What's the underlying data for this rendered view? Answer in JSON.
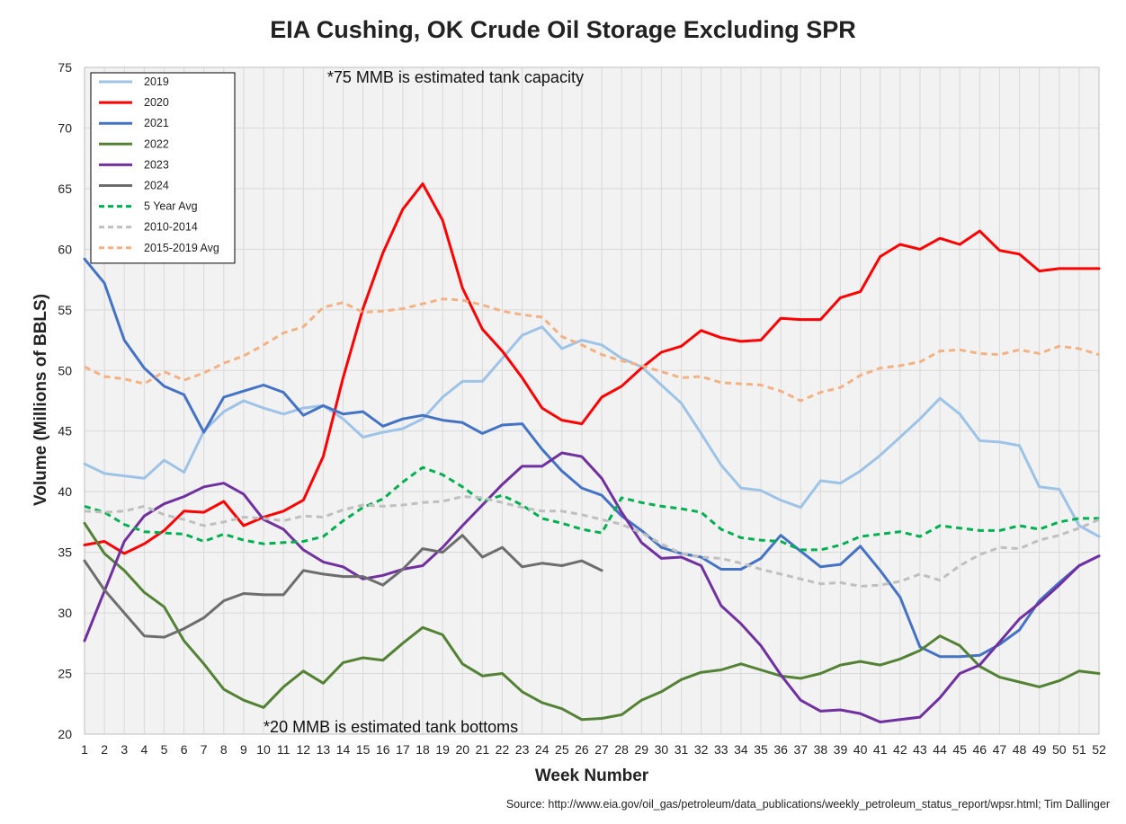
{
  "chart_data": {
    "type": "line",
    "title": "EIA Cushing, OK Crude Oil Storage Excluding SPR",
    "xlabel": "Week Number",
    "ylabel": "Volume (Millions of BBLS)",
    "source": "Source: http://www.eia.gov/oil_gas/petroleum/data_publications/weekly_petroleum_status_report/wpsr.html; Tim Dallinger",
    "xlim": [
      1,
      52
    ],
    "ylim": [
      20,
      75
    ],
    "yticks": [
      20,
      25,
      30,
      35,
      40,
      45,
      50,
      55,
      60,
      65,
      70,
      75
    ],
    "grid": true,
    "legend_position": "top-left",
    "annotations": [
      {
        "text": "*75 MMB is estimated tank capacity",
        "x": 13.2,
        "y": 74.2
      },
      {
        "text": "*20 MMB is estimated tank bottoms",
        "x": 10.0,
        "y": 20.6
      }
    ],
    "series": [
      {
        "name": "2019",
        "color": "#9dc3e6",
        "dash": "solid",
        "values": [
          42.3,
          41.5,
          41.3,
          41.1,
          42.6,
          41.6,
          45.0,
          46.6,
          47.5,
          46.9,
          46.4,
          46.9,
          47.1,
          46.0,
          44.5,
          44.9,
          45.2,
          46.0,
          47.8,
          49.1,
          49.1,
          51.0,
          52.9,
          53.6,
          51.8,
          52.5,
          52.1,
          51.0,
          50.3,
          48.8,
          47.3,
          44.8,
          42.2,
          40.3,
          40.1,
          39.3,
          38.7,
          40.9,
          40.7,
          41.7,
          43.0,
          44.5,
          46.0,
          47.7,
          46.4,
          44.2,
          44.1,
          43.8,
          40.4,
          40.2,
          37.2,
          36.3
        ]
      },
      {
        "name": "2020",
        "color": "#ff0000",
        "dash": "solid",
        "values": [
          35.6,
          35.9,
          34.9,
          35.7,
          36.8,
          38.4,
          38.3,
          39.2,
          37.2,
          37.9,
          38.4,
          39.3,
          42.9,
          49.4,
          55.1,
          59.7,
          63.3,
          65.4,
          62.4,
          56.8,
          53.4,
          51.6,
          49.4,
          46.9,
          45.9,
          45.6,
          47.8,
          48.7,
          50.2,
          51.5,
          52.0,
          53.3,
          52.7,
          52.4,
          52.5,
          54.3,
          54.2,
          54.2,
          56.0,
          56.5,
          59.4,
          60.4,
          60.0,
          60.9,
          60.4,
          61.5,
          59.9,
          59.6,
          58.2,
          58.4,
          58.4,
          58.4
        ]
      },
      {
        "name": "2021",
        "color": "#4472c4",
        "dash": "solid",
        "values": [
          59.2,
          57.2,
          52.5,
          50.2,
          48.7,
          48.0,
          44.9,
          47.8,
          48.3,
          48.8,
          48.2,
          46.3,
          47.1,
          46.4,
          46.6,
          45.4,
          46.0,
          46.3,
          45.9,
          45.7,
          44.8,
          45.5,
          45.6,
          43.5,
          41.7,
          40.3,
          39.7,
          38.0,
          36.8,
          35.4,
          34.9,
          34.6,
          33.6,
          33.6,
          34.5,
          36.4,
          35.1,
          33.8,
          34.0,
          35.5,
          33.5,
          31.3,
          27.2,
          26.4,
          26.4,
          26.5,
          27.4,
          28.6,
          31.0,
          32.5,
          33.9,
          34.7
        ]
      },
      {
        "name": "2022",
        "color": "#548235",
        "dash": "solid",
        "values": [
          37.4,
          34.9,
          33.5,
          31.7,
          30.5,
          27.7,
          25.8,
          23.7,
          22.8,
          22.2,
          23.9,
          25.2,
          24.2,
          25.9,
          26.3,
          26.1,
          27.5,
          28.8,
          28.2,
          25.8,
          24.8,
          25.0,
          23.5,
          22.6,
          22.1,
          21.2,
          21.3,
          21.6,
          22.8,
          23.5,
          24.5,
          25.1,
          25.3,
          25.8,
          25.3,
          24.8,
          24.6,
          25.0,
          25.7,
          26.0,
          25.7,
          26.2,
          26.9,
          28.1,
          27.3,
          25.6,
          24.7,
          24.3,
          23.9,
          24.4,
          25.2,
          25.0
        ]
      },
      {
        "name": "2023",
        "color": "#7030a0",
        "dash": "solid",
        "values": [
          27.7,
          31.8,
          35.9,
          38.0,
          39.0,
          39.6,
          40.4,
          40.7,
          39.8,
          37.7,
          36.9,
          35.2,
          34.2,
          33.8,
          32.8,
          33.1,
          33.6,
          33.9,
          35.4,
          37.2,
          38.9,
          40.6,
          42.1,
          42.1,
          43.2,
          42.9,
          41.1,
          38.3,
          35.8,
          34.5,
          34.6,
          33.9,
          30.6,
          29.1,
          27.3,
          24.9,
          22.8,
          21.9,
          22.0,
          21.7,
          21.0,
          21.2,
          21.4,
          23.0,
          25.0,
          25.7,
          27.6,
          29.5,
          30.8,
          32.3,
          33.9,
          34.7
        ]
      },
      {
        "name": "2024",
        "color": "#6d6d6d",
        "dash": "solid",
        "values": [
          34.3,
          31.9,
          30.0,
          28.1,
          28.0,
          28.7,
          29.6,
          31.0,
          31.6,
          31.5,
          31.5,
          33.5,
          33.2,
          33.0,
          33.0,
          32.3,
          33.6,
          35.3,
          35.0,
          36.4,
          34.6,
          35.4,
          33.8,
          34.1,
          33.9,
          34.3,
          33.5
        ]
      },
      {
        "name": "5 Year Avg",
        "color": "#00b050",
        "dash": "dashed",
        "values": [
          38.8,
          38.3,
          37.3,
          36.7,
          36.6,
          36.5,
          35.9,
          36.5,
          36.0,
          35.7,
          35.8,
          35.9,
          36.3,
          37.6,
          38.7,
          39.4,
          40.8,
          42.0,
          41.4,
          40.4,
          39.2,
          39.7,
          38.9,
          37.8,
          37.4,
          36.9,
          36.6,
          39.5,
          39.1,
          38.8,
          38.6,
          38.3,
          36.9,
          36.2,
          36.0,
          35.9,
          35.2,
          35.2,
          35.6,
          36.3,
          36.5,
          36.7,
          36.3,
          37.2,
          37.0,
          36.8,
          36.8,
          37.2,
          36.9,
          37.5,
          37.8,
          37.8
        ]
      },
      {
        "name": "2010-2014",
        "color": "#bfbfbf",
        "dash": "dashed",
        "values": [
          38.4,
          38.3,
          38.4,
          38.8,
          38.1,
          37.7,
          37.2,
          37.5,
          37.9,
          37.8,
          37.6,
          38.0,
          37.9,
          38.5,
          38.9,
          38.8,
          38.9,
          39.1,
          39.2,
          39.6,
          39.5,
          39.1,
          38.7,
          38.4,
          38.4,
          38.1,
          37.7,
          37.3,
          36.6,
          35.7,
          34.9,
          34.6,
          34.5,
          34.1,
          33.6,
          33.2,
          32.8,
          32.4,
          32.5,
          32.2,
          32.3,
          32.6,
          33.2,
          32.7,
          33.9,
          34.8,
          35.4,
          35.3,
          36.0,
          36.4,
          37.0,
          37.7
        ]
      },
      {
        "name": "2015-2019 Avg",
        "color": "#f4b183",
        "dash": "dashed",
        "values": [
          50.3,
          49.5,
          49.3,
          48.9,
          49.9,
          49.2,
          49.8,
          50.6,
          51.2,
          52.1,
          53.1,
          53.6,
          55.2,
          55.6,
          54.8,
          54.9,
          55.1,
          55.5,
          55.9,
          55.8,
          55.4,
          54.9,
          54.6,
          54.4,
          52.8,
          52.1,
          51.3,
          50.8,
          50.4,
          49.9,
          49.4,
          49.5,
          49.0,
          48.9,
          48.8,
          48.3,
          47.5,
          48.2,
          48.6,
          49.6,
          50.2,
          50.4,
          50.7,
          51.6,
          51.7,
          51.4,
          51.3,
          51.7,
          51.4,
          52.0,
          51.8,
          51.3
        ]
      }
    ]
  }
}
